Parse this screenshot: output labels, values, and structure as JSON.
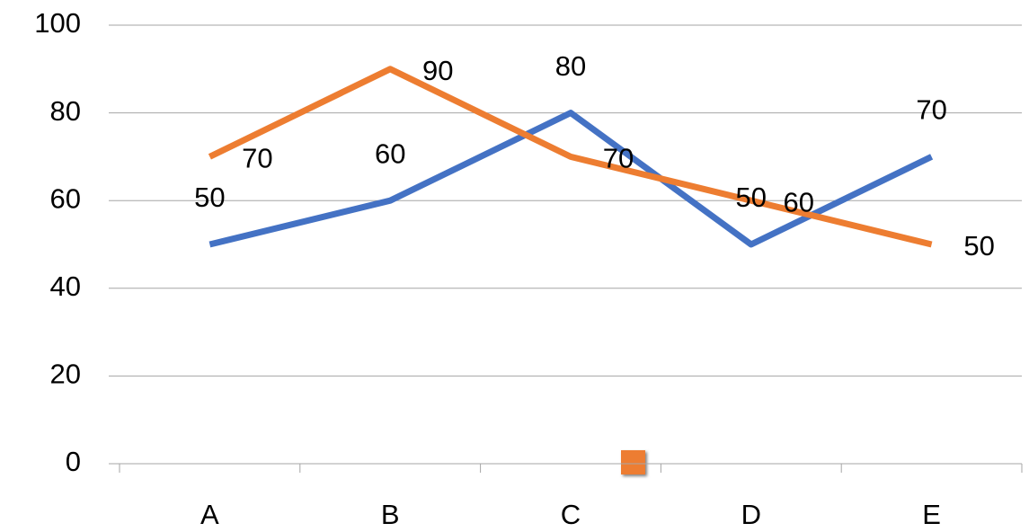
{
  "chart_data": {
    "type": "line",
    "categories": [
      "A",
      "B",
      "C",
      "D",
      "E"
    ],
    "series": [
      {
        "color": "#4472c4",
        "values": [
          50,
          60,
          80,
          50,
          70
        ]
      },
      {
        "color": "#ed7d31",
        "values": [
          70,
          90,
          70,
          60,
          50
        ]
      }
    ],
    "ylim": [
      0,
      100
    ],
    "yticks": [
      0,
      20,
      40,
      60,
      80,
      100
    ],
    "grid": true
  }
}
